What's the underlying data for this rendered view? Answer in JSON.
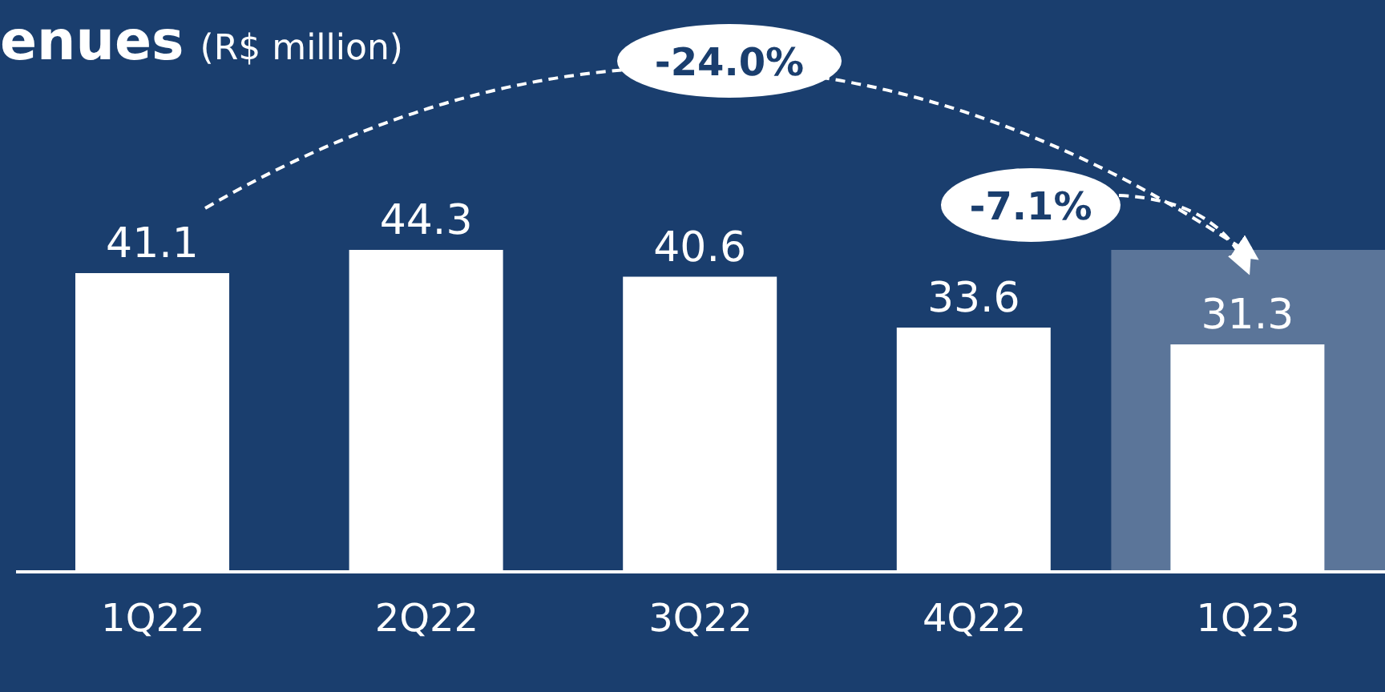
{
  "chart_data": {
    "type": "bar",
    "title": "enues",
    "subtitle": "(R$ million)",
    "categories": [
      "1Q22",
      "2Q22",
      "3Q22",
      "4Q22",
      "1Q23"
    ],
    "values": [
      41.1,
      44.3,
      40.6,
      33.6,
      31.3
    ],
    "color": "#ffffff",
    "data_labels": true,
    "grid": false,
    "legend": false,
    "bands": [
      {
        "axis": "x",
        "from": "1Q23",
        "to": "1Q23",
        "color": "#5b7599"
      }
    ],
    "annotations": [
      "-24.0%",
      "-7.1%"
    ]
  }
}
